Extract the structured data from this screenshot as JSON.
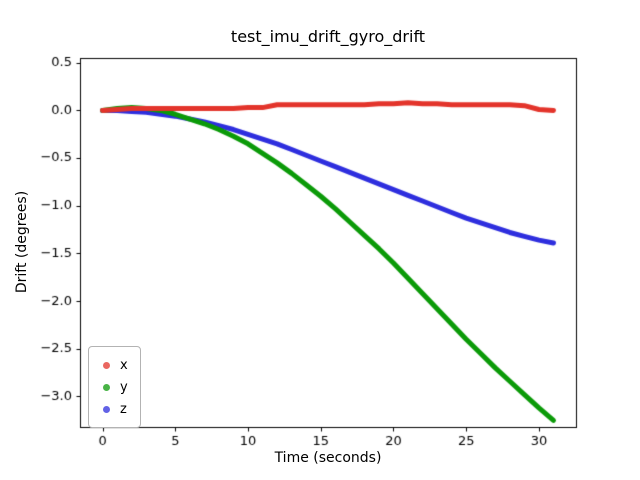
{
  "chart_data": {
    "type": "scatter",
    "title": "test_imu_drift_gyro_drift",
    "xlabel": "Time (seconds)",
    "ylabel": "Drift (degrees)",
    "xlim": [
      -1.55,
      32.55
    ],
    "ylim": [
      -3.32,
      0.55
    ],
    "grid": false,
    "xticks": {
      "values": [
        0,
        5,
        10,
        15,
        20,
        25,
        30
      ],
      "labels": [
        "0",
        "5",
        "10",
        "15",
        "20",
        "25",
        "30"
      ]
    },
    "yticks": {
      "values": [
        0.5,
        0.0,
        -0.5,
        -1.0,
        -1.5,
        -2.0,
        -2.5,
        -3.0
      ],
      "labels": [
        "0.5",
        "0.0",
        "−0.5",
        "−1.0",
        "−1.5",
        "−2.0",
        "−2.5",
        "−3.0"
      ]
    },
    "x": [
      0,
      1,
      2,
      3,
      4,
      5,
      6,
      7,
      8,
      9,
      10,
      11,
      12,
      13,
      14,
      15,
      16,
      17,
      18,
      19,
      20,
      21,
      22,
      23,
      24,
      25,
      26,
      27,
      28,
      29,
      30,
      31
    ],
    "series": [
      {
        "name": "x",
        "color": "#e3342b",
        "marker": "dot",
        "values": [
          0.0,
          0.01,
          0.02,
          0.02,
          0.02,
          0.02,
          0.02,
          0.02,
          0.02,
          0.02,
          0.03,
          0.03,
          0.06,
          0.06,
          0.06,
          0.06,
          0.06,
          0.06,
          0.06,
          0.07,
          0.07,
          0.08,
          0.07,
          0.07,
          0.06,
          0.06,
          0.06,
          0.06,
          0.06,
          0.05,
          0.01,
          0.0
        ]
      },
      {
        "name": "y",
        "color": "#0b9a08",
        "marker": "dot",
        "values": [
          0.0,
          0.02,
          0.03,
          0.02,
          0.0,
          -0.04,
          -0.09,
          -0.14,
          -0.2,
          -0.27,
          -0.35,
          -0.45,
          -0.55,
          -0.66,
          -0.78,
          -0.9,
          -1.03,
          -1.17,
          -1.31,
          -1.45,
          -1.6,
          -1.76,
          -1.92,
          -2.08,
          -2.24,
          -2.4,
          -2.55,
          -2.7,
          -2.84,
          -2.98,
          -3.12,
          -3.25
        ]
      },
      {
        "name": "z",
        "color": "#2e2ede",
        "marker": "dot",
        "values": [
          0.0,
          0.0,
          -0.01,
          -0.02,
          -0.04,
          -0.06,
          -0.09,
          -0.12,
          -0.16,
          -0.2,
          -0.25,
          -0.3,
          -0.35,
          -0.41,
          -0.47,
          -0.53,
          -0.59,
          -0.65,
          -0.71,
          -0.77,
          -0.83,
          -0.89,
          -0.95,
          -1.01,
          -1.07,
          -1.13,
          -1.18,
          -1.23,
          -1.28,
          -1.32,
          -1.36,
          -1.39
        ]
      }
    ],
    "legend": {
      "position": "lower left",
      "entries": [
        "x",
        "y",
        "z"
      ]
    }
  }
}
